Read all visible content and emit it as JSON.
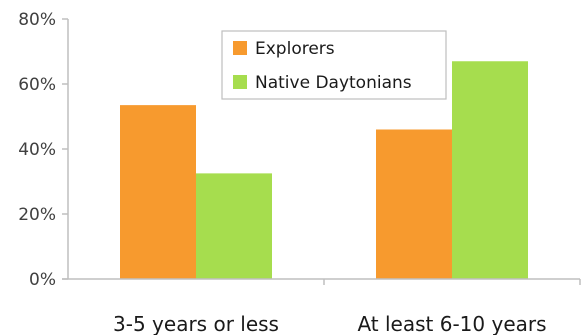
{
  "chart_data": {
    "type": "bar",
    "categories": [
      "3-5 years or less",
      "At least 6-10 years"
    ],
    "series": [
      {
        "name": "Explorers",
        "values": [
          53.5,
          46
        ],
        "color": "#f79a2e"
      },
      {
        "name": "Native Daytonians",
        "values": [
          32.5,
          67
        ],
        "color": "#a6dd4e"
      }
    ],
    "ylim": [
      0,
      80
    ],
    "yticks": [
      {
        "value": 0,
        "label": "0%"
      },
      {
        "value": 20,
        "label": "20%"
      },
      {
        "value": 40,
        "label": "40%"
      },
      {
        "value": 60,
        "label": "60%"
      },
      {
        "value": 80,
        "label": "80%"
      }
    ],
    "title": "",
    "xlabel": "",
    "ylabel": "",
    "grid": false,
    "legend_position": "top-center"
  }
}
